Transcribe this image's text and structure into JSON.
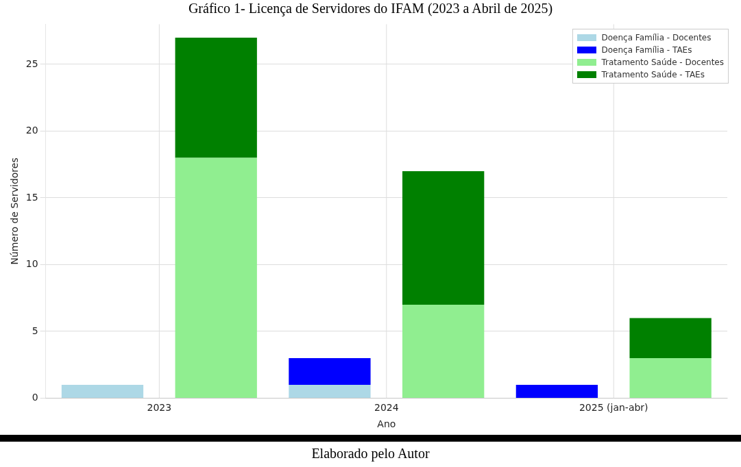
{
  "chart_data": {
    "type": "bar",
    "title": "Gráfico 1- Licença de Servidores do IFAM (2023 a Abril de 2025)",
    "xlabel": "Ano",
    "ylabel": "Número de Servidores",
    "categories": [
      "2023",
      null,
      "2024",
      null,
      "2025 (jan-abr)",
      null
    ],
    "stacked": true,
    "series": [
      {
        "name": "Doença Família - Docentes",
        "color": "#add8e6",
        "values": [
          1,
          null,
          1,
          null,
          0,
          null
        ]
      },
      {
        "name": "Doença Família - TAEs",
        "color": "#0000ff",
        "values": [
          0,
          null,
          2,
          null,
          1,
          null
        ]
      },
      {
        "name": "Tratamento Saúde - Docentes",
        "color": "#90ee90",
        "values": [
          null,
          18,
          null,
          7,
          null,
          3
        ]
      },
      {
        "name": "Tratamento Saúde - TAEs",
        "color": "#008000",
        "values": [
          null,
          9,
          null,
          10,
          null,
          3
        ]
      }
    ],
    "ylim": [
      0,
      28
    ],
    "yticks": [
      0,
      5,
      10,
      15,
      20,
      25
    ],
    "grid": true,
    "legend": "top right",
    "annotations": [
      "Elaborado pelo Autor"
    ]
  }
}
